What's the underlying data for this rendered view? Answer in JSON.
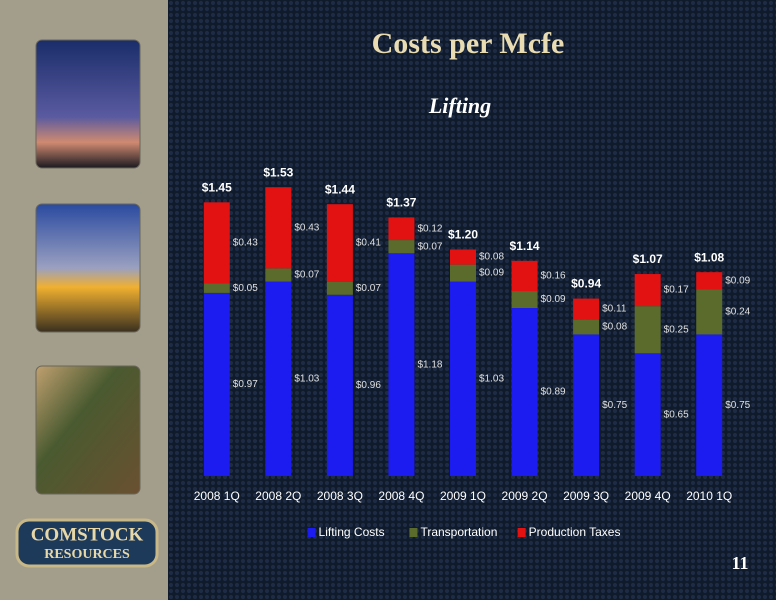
{
  "slide": {
    "title": "Costs per Mcfe",
    "page_number": "11",
    "logo": [
      "COMSTOCK",
      "RESOURCES"
    ]
  },
  "chart_data": {
    "type": "stacked-bar",
    "title": "Lifting",
    "categories": [
      "2008 1Q",
      "2008 2Q",
      "2008 3Q",
      "2008 4Q",
      "2009 1Q",
      "2009 2Q",
      "2009 3Q",
      "2009 4Q",
      "2010 1Q"
    ],
    "series": [
      {
        "name": "Lifting Costs",
        "color": "#1c1cf0",
        "values": [
          0.97,
          1.03,
          0.96,
          1.18,
          1.03,
          0.89,
          0.75,
          0.65,
          0.75
        ],
        "value_labels": [
          "$0.97",
          "$1.03",
          "$0.96",
          "$1.18",
          "$1.03",
          "$0.89",
          "$0.75",
          "$0.65",
          "$0.75"
        ]
      },
      {
        "name": "Transportation",
        "color": "#5b6b2c",
        "values": [
          0.05,
          0.07,
          0.07,
          0.07,
          0.09,
          0.09,
          0.08,
          0.25,
          0.24
        ],
        "value_labels": [
          "$0.05",
          "$0.07",
          "$0.07",
          "$0.07",
          "$0.09",
          "$0.09",
          "$0.08",
          "$0.25",
          "$0.24"
        ]
      },
      {
        "name": "Production Taxes",
        "color": "#e21212",
        "values": [
          0.43,
          0.43,
          0.41,
          0.12,
          0.08,
          0.16,
          0.11,
          0.17,
          0.09
        ],
        "value_labels": [
          "$0.43",
          "$0.43",
          "$0.41",
          "$0.12",
          "$0.08",
          "$0.16",
          "$0.11",
          "$0.17",
          "$0.09"
        ]
      }
    ],
    "totals": [
      1.45,
      1.53,
      1.44,
      1.37,
      1.2,
      1.14,
      0.94,
      1.07,
      1.08
    ],
    "total_labels": [
      "$1.45",
      "$1.53",
      "$1.44",
      "$1.37",
      "$1.20",
      "$1.14",
      "$0.94",
      "$1.07",
      "$1.08"
    ],
    "ylim": [
      0,
      1.6
    ],
    "legend": "bottom"
  }
}
